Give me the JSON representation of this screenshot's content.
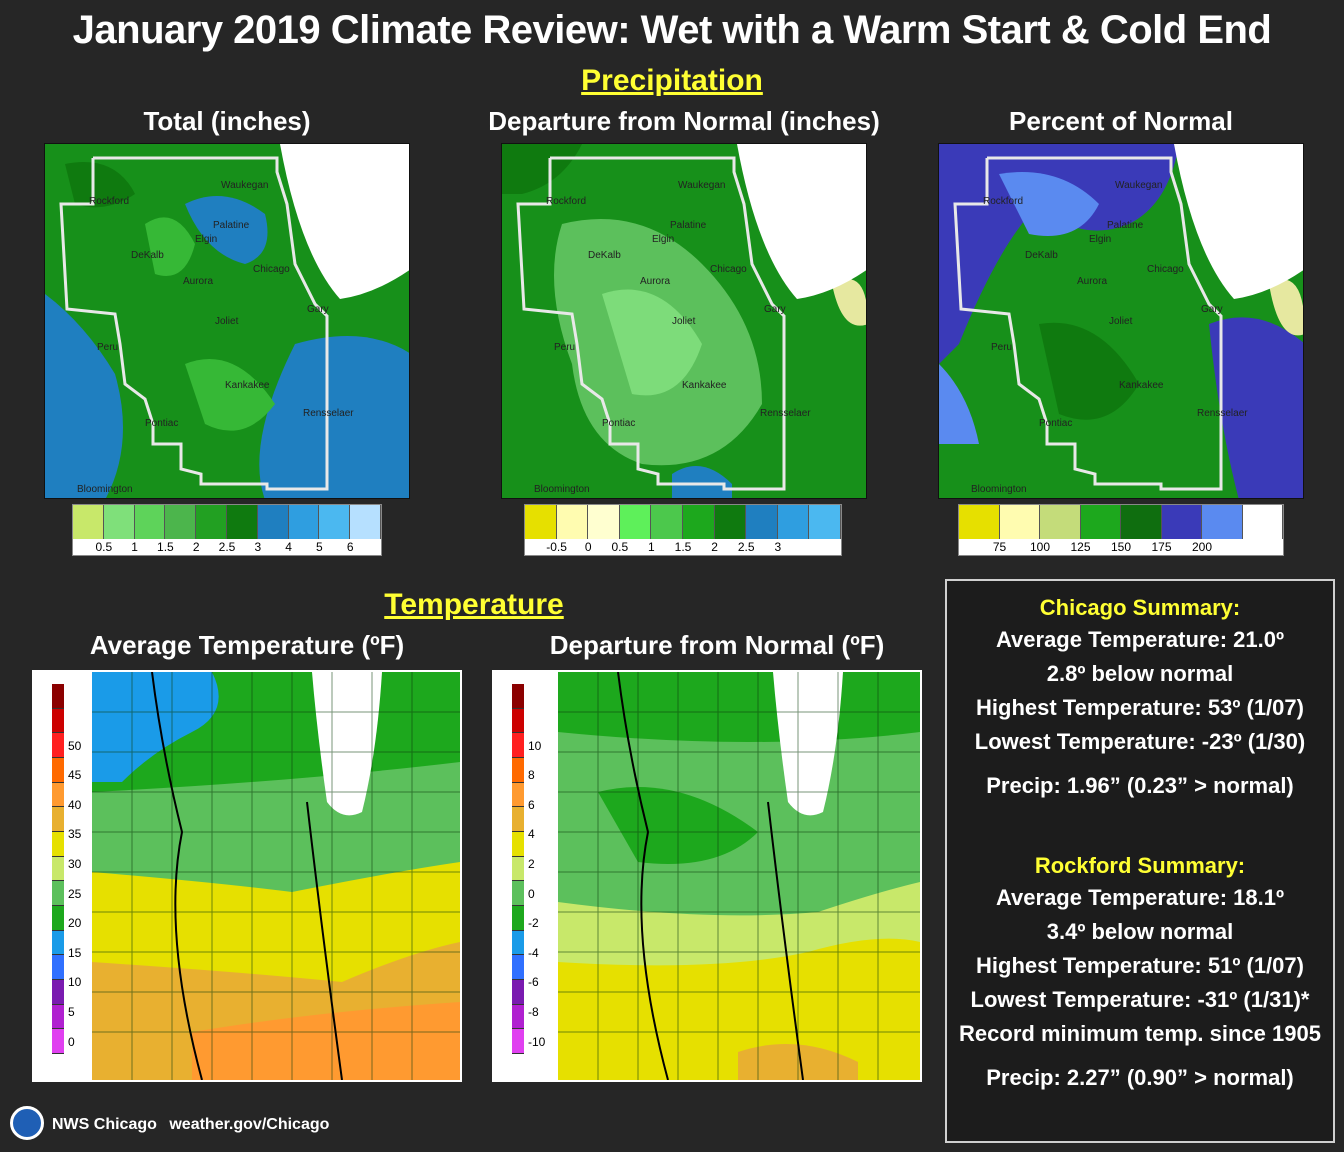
{
  "title": "January 2019 Climate Review: Wet with a Warm Start & Cold End",
  "precip_header": "Precipitation",
  "temp_header": "Temperature",
  "maps": {
    "total": {
      "title": "Total (inches)"
    },
    "departure": {
      "title": "Departure from Normal (inches)"
    },
    "percent": {
      "title": "Percent of Normal"
    },
    "avg_temp": {
      "title": "Average Temperature (ºF)"
    },
    "temp_departure": {
      "title": "Departure from Normal (ºF)"
    }
  },
  "cities": [
    "Rockford",
    "Waukegan",
    "Palatine",
    "Elgin",
    "DeKalb",
    "Chicago",
    "Aurora",
    "Joliet",
    "Gary",
    "Peru",
    "Kankakee",
    "Rensselaer",
    "Pontiac",
    "Bloomington"
  ],
  "legends": {
    "total": {
      "colors": [
        "#c8e86a",
        "#7fe07a",
        "#5ed35a",
        "#4cb54c",
        "#22a022",
        "#0f7a0f",
        "#1f7fc0",
        "#2f9ee0",
        "#4bb8f0",
        "#b6e0ff"
      ],
      "labels": [
        "0.5",
        "1",
        "1.5",
        "2",
        "2.5",
        "3",
        "4",
        "5",
        "6"
      ]
    },
    "departure": {
      "colors": [
        "#e6e000",
        "#fffcb0",
        "#ffffd0",
        "#5ef05a",
        "#4cc84c",
        "#1da81d",
        "#0f7a0f",
        "#1f7fc0",
        "#2f9ee0",
        "#4bb8f0"
      ],
      "labels": [
        "-0.5",
        "0",
        "0.5",
        "1",
        "1.5",
        "2",
        "2.5",
        "3"
      ]
    },
    "percent": {
      "colors": [
        "#e6e000",
        "#fffcb0",
        "#c4dc7a",
        "#1da81d",
        "#0f6e0f",
        "#3a3ab8",
        "#5a8af0",
        "#ffffff"
      ],
      "labels": [
        "75",
        "100",
        "125",
        "150",
        "175",
        "200"
      ]
    },
    "avg_temp": {
      "colors": [
        "#8b0000",
        "#cc0000",
        "#ff2020",
        "#ff6a00",
        "#ff9a30",
        "#e8b030",
        "#e6e000",
        "#c8e86a",
        "#5cc05c",
        "#1da81d",
        "#1a9be8",
        "#3070ff",
        "#7a1ab0",
        "#b020d0",
        "#e040f0"
      ],
      "labels": [
        "50",
        "45",
        "40",
        "35",
        "30",
        "25",
        "20",
        "15",
        "10",
        "5",
        "0"
      ]
    },
    "temp_departure": {
      "colors": [
        "#8b0000",
        "#cc0000",
        "#ff2020",
        "#ff6a00",
        "#ff9a30",
        "#e8b030",
        "#e6e000",
        "#c8e86a",
        "#5cc05c",
        "#1da81d",
        "#1a9be8",
        "#3070ff",
        "#7a1ab0",
        "#b020d0",
        "#e040f0"
      ],
      "labels": [
        "10",
        "8",
        "6",
        "4",
        "2",
        "0",
        "-2",
        "-4",
        "-6",
        "-8",
        "-10"
      ]
    }
  },
  "chicago": {
    "header": "Chicago Summary:",
    "avg": "Average Temperature: 21.0º",
    "below": "2.8º below normal",
    "high": "Highest Temperature: 53º (1/07)",
    "low": "Lowest Temperature: -23º (1/30)",
    "precip": "Precip: 1.96”  (0.23” > normal)"
  },
  "rockford": {
    "header": "Rockford Summary:",
    "avg": "Average Temperature: 18.1º",
    "below": "3.4º below normal",
    "high": "Highest Temperature: 51º (1/07)",
    "low": "Lowest Temperature: -31º (1/31)*",
    "record": "Record minimum temp. since 1905",
    "precip": "Precip: 2.27”  (0.90” > normal)"
  },
  "footer": {
    "office": "NWS Chicago",
    "url": "weather.gov/Chicago"
  }
}
